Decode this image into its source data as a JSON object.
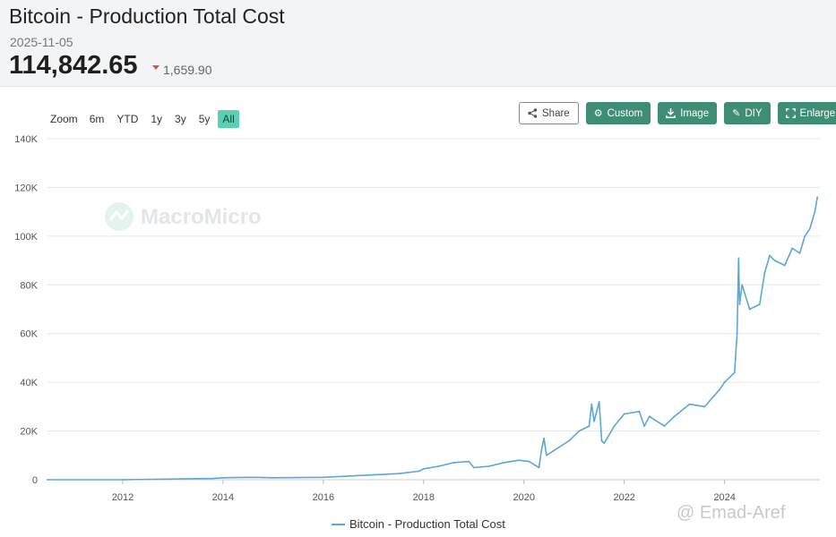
{
  "header": {
    "title": "Bitcoin - Production Total Cost",
    "date": "2025-11-05",
    "value": "114,842.65",
    "change": "1,659.90"
  },
  "zoom": {
    "label": "Zoom",
    "options": [
      "6m",
      "YTD",
      "1y",
      "3y",
      "5y",
      "All"
    ],
    "active": "All"
  },
  "toolbar": {
    "share": "Share",
    "custom": "Custom",
    "image": "Image",
    "diy": "DIY",
    "enlarge": "Enlarge"
  },
  "brand_watermark": "MacroMicro",
  "corner_watermark": "@ Emad-Aref",
  "colors": {
    "series": "#5aa8d6",
    "button": "#3e8d74",
    "zoom_active": "#5bd1b3",
    "negative": "#d9534f"
  },
  "chart_data": {
    "type": "line",
    "ylim": [
      0,
      140000
    ],
    "yticks": [
      0,
      20000,
      40000,
      60000,
      80000,
      100000,
      120000,
      140000
    ],
    "ytick_labels": [
      "0",
      "20K",
      "40K",
      "60K",
      "80K",
      "100K",
      "120K",
      "140K"
    ],
    "xticks": [
      2012,
      2014,
      2016,
      2018,
      2020,
      2022,
      2024
    ],
    "xlim": [
      2010.5,
      2025.9
    ],
    "grid": true,
    "legend_position": "bottom-center",
    "series": [
      {
        "name": "Bitcoin - Production Total Cost",
        "x": [
          2010.5,
          2012.0,
          2013.8,
          2014.0,
          2014.6,
          2015.0,
          2016.0,
          2016.5,
          2017.0,
          2017.5,
          2017.9,
          2018.0,
          2018.3,
          2018.6,
          2018.9,
          2019.0,
          2019.3,
          2019.6,
          2019.9,
          2020.1,
          2020.3,
          2020.35,
          2020.4,
          2020.45,
          2020.6,
          2020.9,
          2021.1,
          2021.3,
          2021.35,
          2021.4,
          2021.5,
          2021.55,
          2021.6,
          2021.8,
          2022.0,
          2022.3,
          2022.4,
          2022.5,
          2022.8,
          2023.0,
          2023.3,
          2023.6,
          2023.9,
          2024.0,
          2024.1,
          2024.2,
          2024.25,
          2024.28,
          2024.3,
          2024.35,
          2024.5,
          2024.7,
          2024.8,
          2024.9,
          2025.0,
          2025.2,
          2025.35,
          2025.5,
          2025.6,
          2025.7,
          2025.8,
          2025.85
        ],
        "y": [
          0,
          0,
          500,
          800,
          1000,
          800,
          1000,
          1500,
          2000,
          2500,
          3500,
          4500,
          5500,
          7000,
          7500,
          5000,
          5500,
          7000,
          8000,
          7500,
          5000,
          12000,
          17000,
          10000,
          12000,
          16000,
          20000,
          22000,
          31000,
          24000,
          32000,
          16000,
          15000,
          22000,
          27000,
          28000,
          22000,
          26000,
          22000,
          26000,
          31000,
          30000,
          37000,
          40000,
          42000,
          44000,
          60000,
          91000,
          72000,
          80000,
          70000,
          72000,
          85000,
          92000,
          90000,
          88000,
          95000,
          93000,
          100000,
          103000,
          110000,
          116000
        ]
      }
    ]
  }
}
